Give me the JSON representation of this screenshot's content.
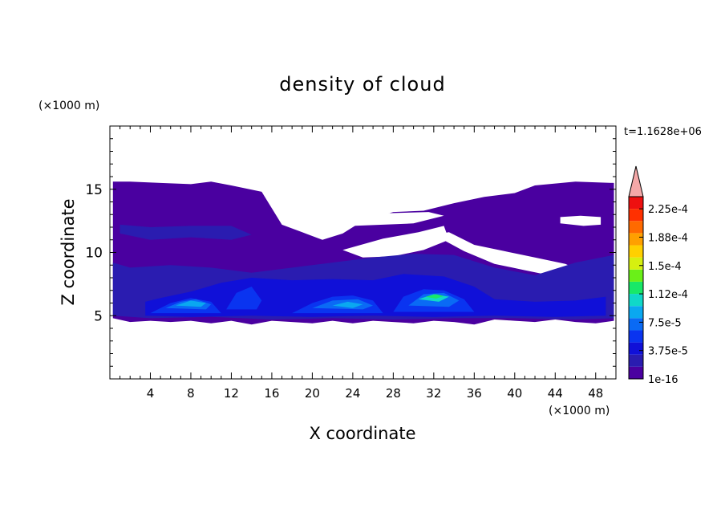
{
  "chart_data": {
    "type": "heatmap",
    "title": "density of cloud",
    "xlabel": "X coordinate",
    "ylabel": "Z coordinate",
    "x_unit": "(×1000 m)",
    "y_unit": "(×1000 m)",
    "time_label": "t=1.1628e+06",
    "xlim": [
      0,
      50
    ],
    "ylim": [
      0,
      20
    ],
    "x_ticks": [
      "4",
      "8",
      "12",
      "16",
      "20",
      "24",
      "28",
      "32",
      "36",
      "40",
      "44",
      "48"
    ],
    "y_ticks": [
      "5",
      "10",
      "15"
    ],
    "colorbar": {
      "tick_labels": [
        "1e-16",
        "3.75e-5",
        "7.5e-5",
        "1.12e-4",
        "1.5e-4",
        "1.88e-4",
        "2.25e-4"
      ],
      "colors": [
        "#4a00a0",
        "#2a1cb0",
        "#1010d8",
        "#0a34f0",
        "#0a6af5",
        "#0aa8f0",
        "#10d8c8",
        "#18e868",
        "#6af018",
        "#d6f010",
        "#ffd000",
        "#ffa000",
        "#ff6a00",
        "#ff3000",
        "#ee1010"
      ],
      "extend_color": "#f4a8a8"
    },
    "regions": [
      {
        "level": 1,
        "color": "#4a00a0",
        "polygon": [
          [
            0.3,
            4.8
          ],
          [
            2,
            4.5
          ],
          [
            4,
            4.6
          ],
          [
            6,
            4.5
          ],
          [
            8,
            4.6
          ],
          [
            10,
            4.4
          ],
          [
            12,
            4.6
          ],
          [
            14,
            4.3
          ],
          [
            16,
            4.6
          ],
          [
            18,
            4.5
          ],
          [
            20,
            4.4
          ],
          [
            22,
            4.6
          ],
          [
            24,
            4.4
          ],
          [
            26,
            4.6
          ],
          [
            28,
            4.5
          ],
          [
            30,
            4.4
          ],
          [
            32,
            4.6
          ],
          [
            34,
            4.5
          ],
          [
            36,
            4.3
          ],
          [
            38,
            4.7
          ],
          [
            40,
            4.6
          ],
          [
            42,
            4.5
          ],
          [
            44,
            4.7
          ],
          [
            46,
            4.5
          ],
          [
            48,
            4.4
          ],
          [
            49.8,
            4.6
          ],
          [
            49.8,
            15.5
          ],
          [
            46,
            15.6
          ],
          [
            42,
            15.3
          ],
          [
            40,
            14.7
          ],
          [
            37,
            14.4
          ],
          [
            34,
            13.9
          ],
          [
            31,
            13.3
          ],
          [
            28,
            13.2
          ],
          [
            25,
            12.5
          ],
          [
            23,
            11.5
          ],
          [
            21,
            11.0
          ],
          [
            19,
            11.6
          ],
          [
            17,
            12.2
          ],
          [
            16,
            13.5
          ],
          [
            15,
            14.8
          ],
          [
            12,
            15.3
          ],
          [
            10,
            15.6
          ],
          [
            8,
            15.4
          ],
          [
            5,
            15.5
          ],
          [
            2,
            15.6
          ],
          [
            0.3,
            15.6
          ]
        ]
      },
      {
        "level": 1,
        "color": "#ffffff",
        "polygon": [
          [
            22,
            12.6
          ],
          [
            24,
            12.1
          ],
          [
            27,
            12.2
          ],
          [
            30,
            12.3
          ],
          [
            33,
            12.9
          ],
          [
            31.5,
            13.2
          ],
          [
            27,
            13.1
          ],
          [
            24,
            13.6
          ],
          [
            22.5,
            13.2
          ]
        ]
      },
      {
        "level": 1,
        "color": "#ffffff",
        "polygon": [
          [
            23,
            10.2
          ],
          [
            27,
            11.1
          ],
          [
            30.5,
            11.6
          ],
          [
            33,
            12.1
          ],
          [
            33.5,
            11.0
          ],
          [
            31,
            10.2
          ],
          [
            28,
            9.7
          ],
          [
            25,
            9.6
          ]
        ]
      },
      {
        "level": 1,
        "color": "#ffffff",
        "polygon": [
          [
            32,
            11.4
          ],
          [
            35,
            10.1
          ],
          [
            38,
            9.1
          ],
          [
            41,
            8.6
          ],
          [
            44,
            8.1
          ],
          [
            46.8,
            7.2
          ],
          [
            47.5,
            8.2
          ],
          [
            45,
            9.1
          ],
          [
            42,
            9.6
          ],
          [
            39,
            10.1
          ],
          [
            36,
            10.6
          ],
          [
            33.5,
            11.6
          ]
        ]
      },
      {
        "level": 1,
        "color": "#ffffff",
        "polygon": [
          [
            44.5,
            12.3
          ],
          [
            46.8,
            12.1
          ],
          [
            48.5,
            12.2
          ],
          [
            48.5,
            12.8
          ],
          [
            46.5,
            12.9
          ],
          [
            44.5,
            12.8
          ]
        ]
      },
      {
        "level": 2,
        "color": "#2a1cb0",
        "polygon": [
          [
            0.3,
            5.0
          ],
          [
            4,
            4.8
          ],
          [
            10,
            4.9
          ],
          [
            16,
            4.7
          ],
          [
            22,
            4.8
          ],
          [
            28,
            4.7
          ],
          [
            34,
            4.8
          ],
          [
            40,
            4.8
          ],
          [
            46,
            4.7
          ],
          [
            49.8,
            4.8
          ],
          [
            49.8,
            9.8
          ],
          [
            46,
            9.2
          ],
          [
            42,
            8.2
          ],
          [
            38,
            8.8
          ],
          [
            34,
            9.8
          ],
          [
            30,
            9.9
          ],
          [
            26,
            9.6
          ],
          [
            22,
            9.2
          ],
          [
            18,
            8.8
          ],
          [
            14,
            8.4
          ],
          [
            10,
            8.8
          ],
          [
            6,
            9.0
          ],
          [
            2,
            8.8
          ],
          [
            0.3,
            9.2
          ]
        ]
      },
      {
        "level": 2,
        "color": "#2a1cb0",
        "polygon": [
          [
            1,
            11.5
          ],
          [
            4,
            11.0
          ],
          [
            8,
            11.2
          ],
          [
            12,
            11.0
          ],
          [
            14,
            11.4
          ],
          [
            12,
            12.1
          ],
          [
            8,
            12.1
          ],
          [
            4,
            12.0
          ],
          [
            1,
            12.2
          ]
        ]
      },
      {
        "level": 3,
        "color": "#1010d8",
        "polygon": [
          [
            3.5,
            5.0
          ],
          [
            8,
            4.9
          ],
          [
            14,
            5.0
          ],
          [
            20,
            4.9
          ],
          [
            26,
            5.0
          ],
          [
            32,
            4.9
          ],
          [
            38,
            5.0
          ],
          [
            44,
            4.9
          ],
          [
            49,
            5.0
          ],
          [
            49,
            6.5
          ],
          [
            46,
            6.2
          ],
          [
            42,
            6.1
          ],
          [
            38,
            6.3
          ],
          [
            36,
            7.3
          ],
          [
            33,
            8.1
          ],
          [
            29,
            8.3
          ],
          [
            26,
            7.8
          ],
          [
            22,
            7.9
          ],
          [
            18,
            7.8
          ],
          [
            14,
            8.0
          ],
          [
            11,
            7.6
          ],
          [
            8,
            6.9
          ],
          [
            5,
            6.4
          ],
          [
            3.5,
            6.1
          ]
        ]
      },
      {
        "level": 4,
        "color": "#0a34f0",
        "polygon": [
          [
            4,
            5.2
          ],
          [
            6,
            6.0
          ],
          [
            8,
            6.4
          ],
          [
            10,
            6.1
          ],
          [
            11,
            5.2
          ]
        ]
      },
      {
        "level": 4,
        "color": "#0a34f0",
        "polygon": [
          [
            18,
            5.2
          ],
          [
            20,
            6.0
          ],
          [
            22,
            6.5
          ],
          [
            24,
            6.6
          ],
          [
            26,
            6.2
          ],
          [
            27,
            5.2
          ]
        ]
      },
      {
        "level": 4,
        "color": "#0a34f0",
        "polygon": [
          [
            28,
            5.3
          ],
          [
            29,
            6.5
          ],
          [
            31,
            7.1
          ],
          [
            33,
            7.0
          ],
          [
            35,
            6.3
          ],
          [
            36,
            5.3
          ]
        ]
      },
      {
        "level": 4,
        "color": "#0a34f0",
        "polygon": [
          [
            11.5,
            5.5
          ],
          [
            12.5,
            6.8
          ],
          [
            14,
            7.3
          ],
          [
            15,
            6.2
          ],
          [
            14.5,
            5.5
          ]
        ]
      },
      {
        "level": 5,
        "color": "#0a6af5",
        "polygon": [
          [
            5.5,
            5.6
          ],
          [
            7,
            6.1
          ],
          [
            8.5,
            6.3
          ],
          [
            10,
            5.9
          ],
          [
            9.5,
            5.5
          ]
        ]
      },
      {
        "level": 5,
        "color": "#0a6af5",
        "polygon": [
          [
            20,
            5.6
          ],
          [
            22,
            6.2
          ],
          [
            24.5,
            6.3
          ],
          [
            26,
            5.8
          ],
          [
            25,
            5.5
          ]
        ]
      },
      {
        "level": 5,
        "color": "#0a6af5",
        "polygon": [
          [
            29.5,
            5.8
          ],
          [
            31,
            6.7
          ],
          [
            33,
            6.8
          ],
          [
            34.5,
            6.2
          ],
          [
            33.5,
            5.7
          ]
        ]
      },
      {
        "level": 6,
        "color": "#0aa8f0",
        "polygon": [
          [
            6.5,
            5.8
          ],
          [
            8,
            6.2
          ],
          [
            9.5,
            6.0
          ],
          [
            9,
            5.7
          ]
        ]
      },
      {
        "level": 6,
        "color": "#0aa8f0",
        "polygon": [
          [
            22,
            5.8
          ],
          [
            23.5,
            6.1
          ],
          [
            25,
            5.9
          ],
          [
            24,
            5.6
          ]
        ]
      },
      {
        "level": 7,
        "color": "#10d8c8",
        "polygon": [
          [
            30.5,
            6.3
          ],
          [
            32,
            6.7
          ],
          [
            33.5,
            6.5
          ],
          [
            32.5,
            6.1
          ]
        ]
      },
      {
        "level": 8,
        "color": "#18e868",
        "polygon": [
          [
            31.2,
            6.5
          ],
          [
            32.2,
            6.7
          ],
          [
            33,
            6.55
          ],
          [
            32.2,
            6.35
          ]
        ]
      }
    ]
  }
}
